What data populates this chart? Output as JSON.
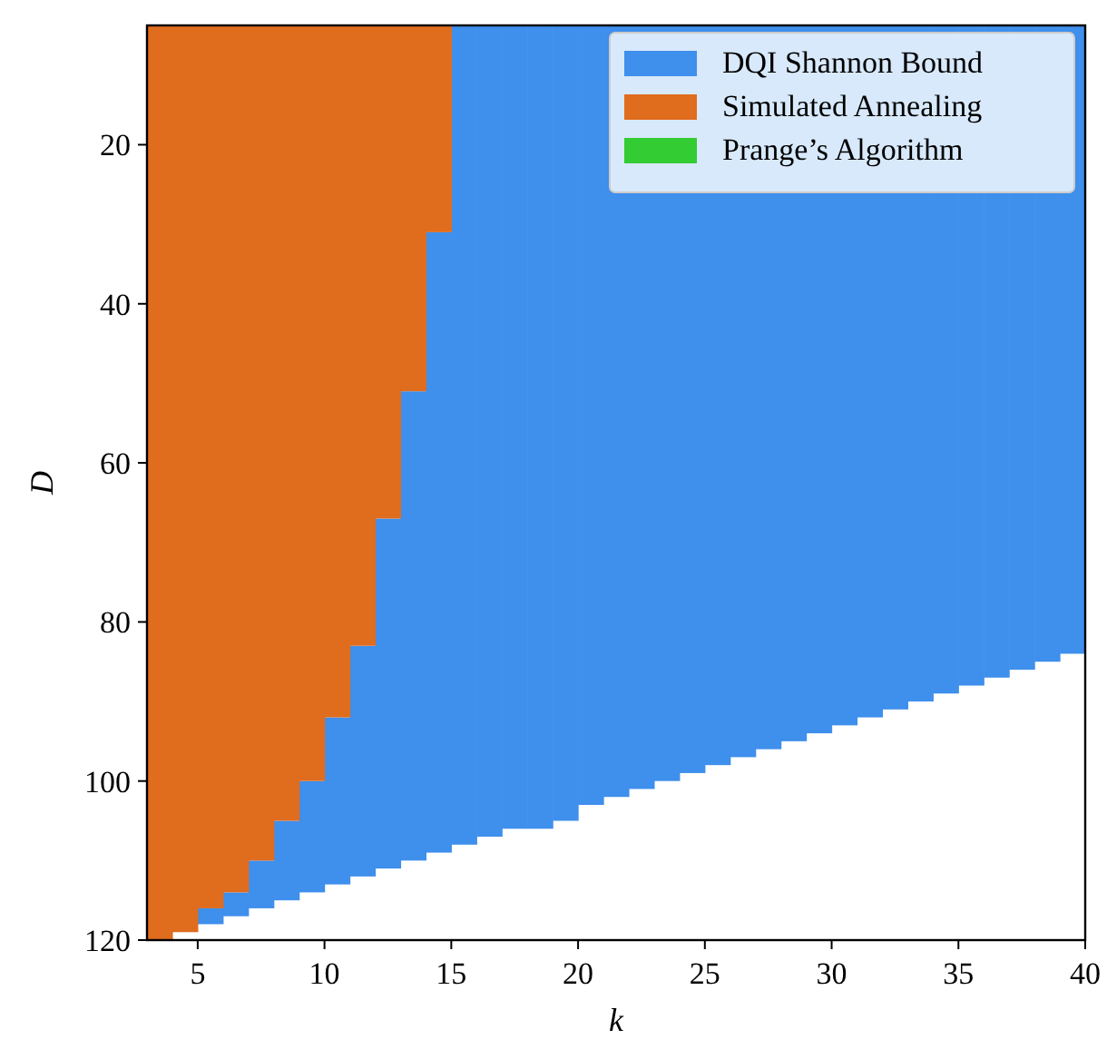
{
  "chart_data": {
    "type": "bar",
    "xlabel": "k",
    "ylabel": "D",
    "x": [
      3.5,
      4.5,
      5.5,
      6.5,
      7.5,
      8.5,
      9.5,
      10.5,
      11.5,
      12.5,
      13.5,
      14.5,
      15.5,
      16.5,
      17.5,
      18.5,
      19.5,
      20.5,
      21.5,
      22.5,
      23.5,
      24.5,
      25.5,
      26.5,
      27.5,
      28.5,
      29.5,
      30.5,
      31.5,
      32.5,
      33.5,
      34.5,
      35.5,
      36.5,
      37.5,
      38.5,
      39.5
    ],
    "series": [
      {
        "name": "DQI Shannon Bound",
        "color": "#3f8fec",
        "base": [
          null,
          null,
          116,
          114,
          110,
          105,
          100,
          92,
          83,
          67,
          51,
          31,
          5,
          5,
          5,
          5,
          5,
          5,
          5,
          5,
          5,
          5,
          5,
          5,
          5,
          5,
          5,
          5,
          5,
          5,
          5,
          5,
          5,
          5,
          5,
          5,
          5
        ],
        "values": [
          null,
          null,
          2,
          3,
          6,
          10,
          14,
          21,
          29,
          44,
          59,
          78,
          103,
          102,
          101,
          101,
          100,
          98,
          97,
          96,
          95,
          94,
          93,
          92,
          91,
          90,
          89,
          88,
          87,
          86,
          85,
          84,
          83,
          82,
          81,
          80,
          79
        ]
      },
      {
        "name": "Simulated Annealing",
        "color": "#e06c1e",
        "base": [
          5,
          5,
          5,
          5,
          5,
          5,
          5,
          5,
          5,
          5,
          5,
          5,
          null,
          null,
          null,
          null,
          null,
          null,
          null,
          null,
          null,
          null,
          null,
          null,
          null,
          null,
          null,
          null,
          null,
          null,
          null,
          null,
          null,
          null,
          null,
          null,
          null
        ],
        "values": [
          115,
          114,
          111,
          109,
          105,
          100,
          95,
          87,
          78,
          62,
          46,
          26,
          null,
          null,
          null,
          null,
          null,
          null,
          null,
          null,
          null,
          null,
          null,
          null,
          null,
          null,
          null,
          null,
          null,
          null,
          null,
          null,
          null,
          null,
          null,
          null,
          null
        ]
      },
      {
        "name": "Prange’s Algorithm",
        "color": "#33cc33",
        "values": [
          null,
          null,
          null,
          null,
          null,
          null,
          null,
          null,
          null,
          null,
          null,
          null,
          null,
          null,
          null,
          null,
          null,
          null,
          null,
          null,
          null,
          null,
          null,
          null,
          null,
          null,
          null,
          null,
          null,
          null,
          null,
          null,
          null,
          null,
          null,
          null,
          null
        ]
      }
    ],
    "xlim": [
      3,
      40
    ],
    "ylim": [
      120,
      5
    ],
    "xticks": [
      5,
      10,
      15,
      20,
      25,
      30,
      35,
      40
    ],
    "yticks": [
      20,
      40,
      60,
      80,
      100,
      120
    ],
    "legend": "top right"
  }
}
